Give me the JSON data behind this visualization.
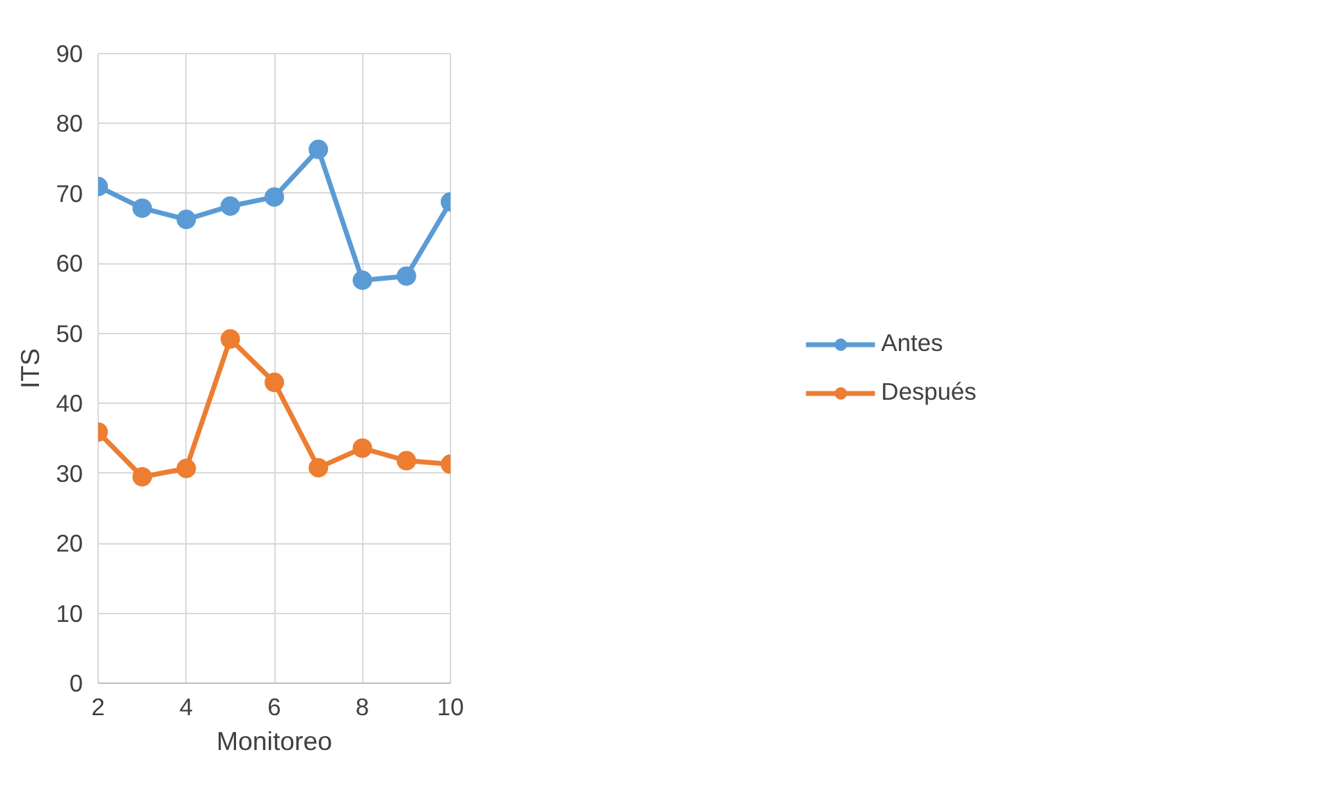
{
  "chart_data": {
    "type": "line",
    "xlabel": "Monitoreo",
    "ylabel": "ITS",
    "x": [
      2,
      3,
      4,
      5,
      6,
      7,
      8,
      9,
      10
    ],
    "series": [
      {
        "name": "Antes",
        "color": "#5b9bd5",
        "values": [
          71.0,
          67.9,
          66.3,
          68.2,
          69.5,
          76.3,
          57.6,
          58.2,
          68.8
        ]
      },
      {
        "name": "Después",
        "color": "#ed7d31",
        "values": [
          35.9,
          29.5,
          30.7,
          49.2,
          43.0,
          30.8,
          33.6,
          31.8,
          31.3
        ]
      }
    ],
    "xlim": [
      2,
      10
    ],
    "xticks": [
      2,
      4,
      6,
      8,
      10
    ],
    "ylim": [
      0,
      90
    ],
    "yticks": [
      0,
      10,
      20,
      30,
      40,
      50,
      60,
      70,
      80,
      90
    ],
    "grid": true,
    "legend": "right",
    "marker": "circle",
    "line_style": "solid"
  }
}
